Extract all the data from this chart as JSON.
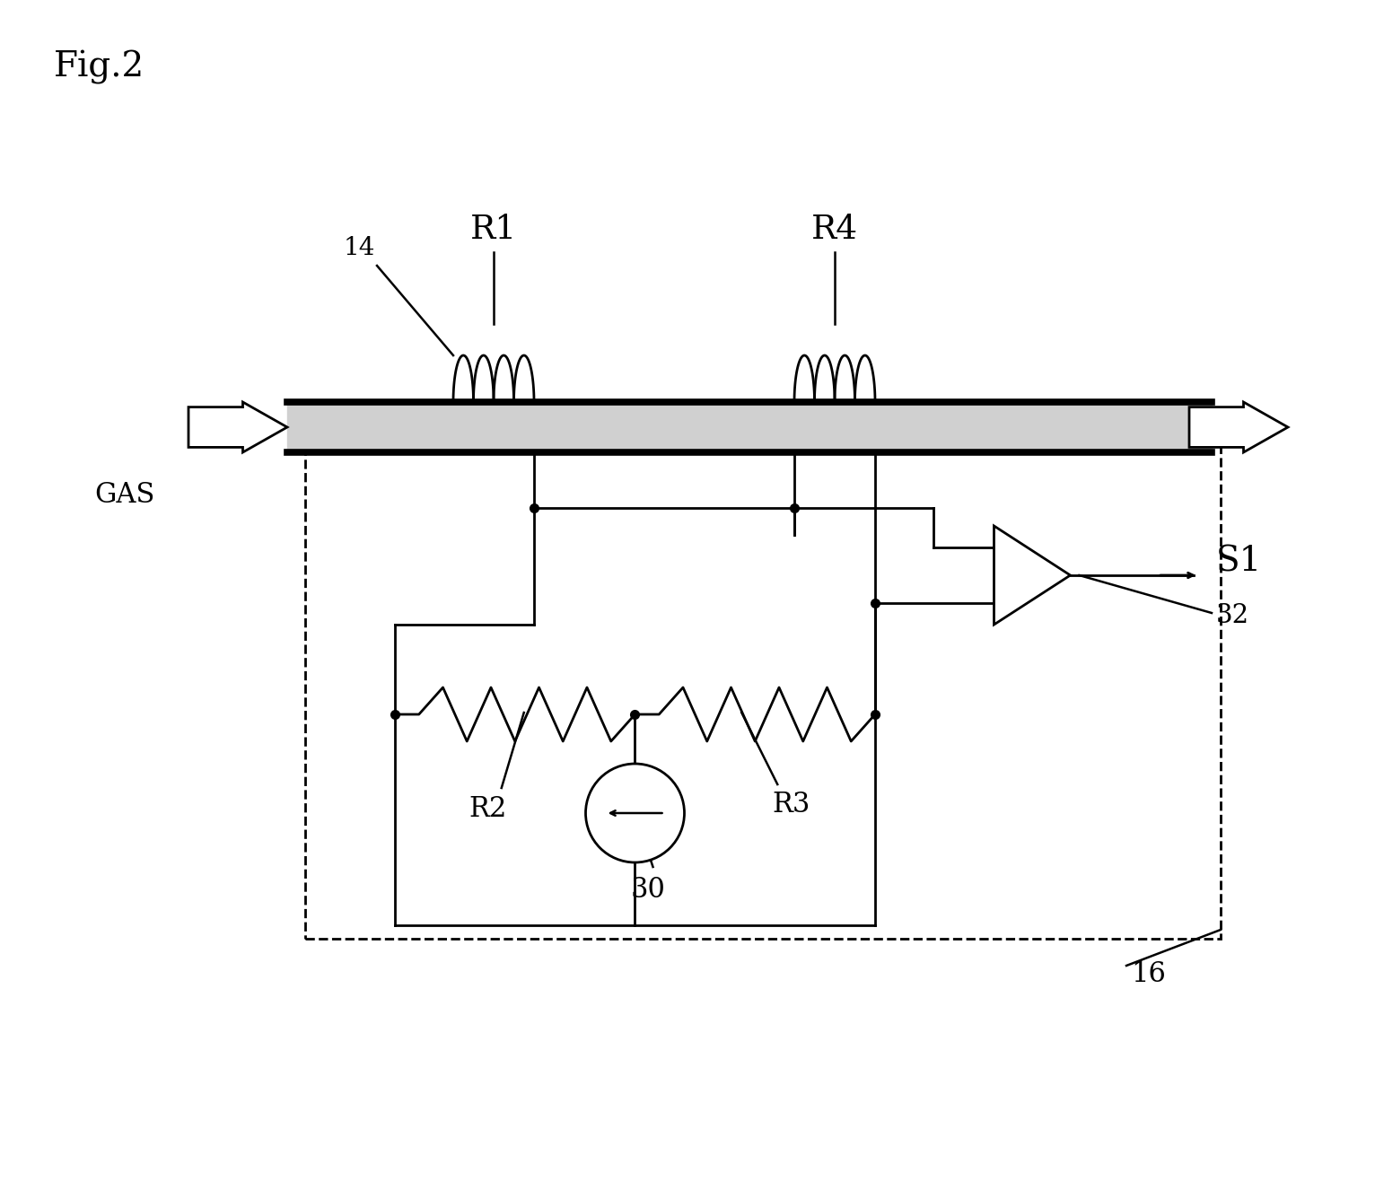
{
  "title": "Fig.2",
  "bg_color": "#ffffff",
  "label_14": "14",
  "label_R1": "R1",
  "label_R4": "R4",
  "label_R2": "R2",
  "label_R3": "R3",
  "label_30": "30",
  "label_16": "16",
  "label_32": "32",
  "label_S1": "S1",
  "label_GAS": "GAS",
  "fig_width": 15.32,
  "fig_height": 13.26
}
